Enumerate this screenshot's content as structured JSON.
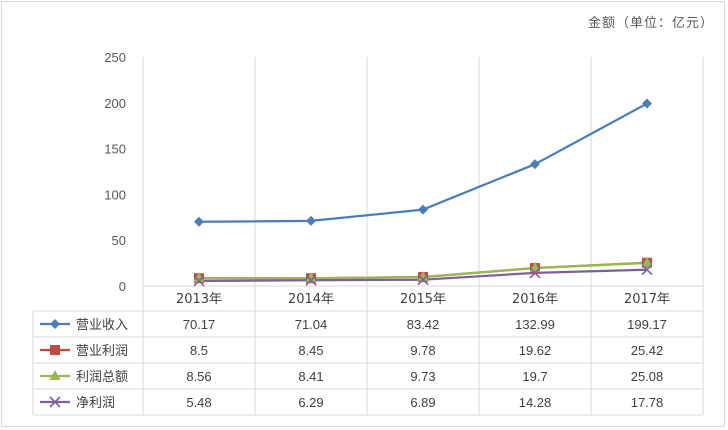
{
  "chart_data": {
    "type": "line",
    "unit_label": "金额（单位：亿元）",
    "categories": [
      "2013年",
      "2014年",
      "2015年",
      "2016年",
      "2017年"
    ],
    "ylim": [
      0,
      250
    ],
    "yticks": [
      0,
      50,
      100,
      150,
      200,
      250
    ],
    "grid": "vertical",
    "legend": "data-table-left",
    "series": [
      {
        "name": "营业收入",
        "values": [
          70.17,
          71.04,
          83.42,
          132.99,
          199.17
        ],
        "labels": [
          "70.17",
          "71.04",
          "83.42",
          "132.99",
          "199.17"
        ],
        "color": "#4a7ebb",
        "marker": "diamond"
      },
      {
        "name": "营业利润",
        "values": [
          8.5,
          8.45,
          9.78,
          19.62,
          25.42
        ],
        "labels": [
          "8.5",
          "8.45",
          "9.78",
          "19.62",
          "25.42"
        ],
        "color": "#be4b48",
        "marker": "square"
      },
      {
        "name": "利润总额",
        "values": [
          8.56,
          8.41,
          9.73,
          19.7,
          25.08
        ],
        "labels": [
          "8.56",
          "8.41",
          "9.73",
          "19.7",
          "25.08"
        ],
        "color": "#98b954",
        "marker": "triangle"
      },
      {
        "name": "净利润",
        "values": [
          5.48,
          6.29,
          6.89,
          14.28,
          17.78
        ],
        "labels": [
          "5.48",
          "6.29",
          "6.89",
          "14.28",
          "17.78"
        ],
        "color": "#7d60a0",
        "marker": "x"
      }
    ]
  }
}
